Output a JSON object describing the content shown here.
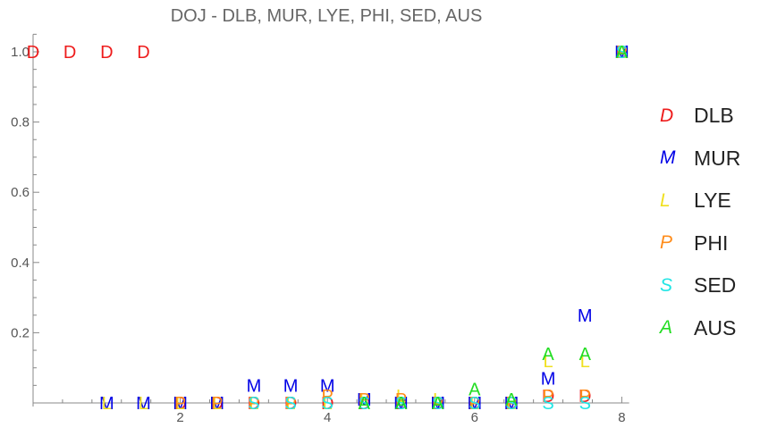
{
  "chart_data": {
    "type": "scatter",
    "title": "DOJ - DLB, MUR, LYE, PHI, SED, AUS",
    "xlabel": "",
    "ylabel": "",
    "xlim": [
      0,
      8.1
    ],
    "ylim": [
      0,
      1.05
    ],
    "x_ticks": [
      "2",
      "4",
      "6",
      "8"
    ],
    "y_ticks": [
      "0.2",
      "0.4",
      "0.6",
      "0.8",
      "1.0"
    ],
    "grid": false,
    "legend_position": "right",
    "series": [
      {
        "name": "DLB",
        "marker": "D",
        "color": "#ee1c1c",
        "x": [
          0,
          0.5,
          1,
          1.5,
          2,
          2.5,
          3,
          3.5,
          4,
          4.5,
          5,
          5.5,
          6,
          6.5,
          7,
          7.5,
          8
        ],
        "y": [
          1.0,
          1.0,
          1.0,
          1.0,
          0,
          0,
          0,
          0,
          0,
          0,
          0,
          0,
          0,
          0,
          0.02,
          0.02,
          1.0
        ]
      },
      {
        "name": "MUR",
        "marker": "M",
        "color": "#0000e6",
        "x": [
          1,
          1.5,
          2,
          2.5,
          3,
          3.5,
          4,
          4.5,
          5,
          5.5,
          6,
          6.5,
          7,
          7.5,
          8
        ],
        "y": [
          0,
          0,
          0,
          0,
          0.05,
          0.05,
          0.05,
          0.01,
          0,
          0,
          0,
          0,
          0.07,
          0.25,
          1.0
        ]
      },
      {
        "name": "LYE",
        "marker": "L",
        "color": "#f0e020",
        "x": [
          1,
          1.5,
          2,
          2.5,
          3,
          3.5,
          4,
          4.5,
          5,
          5.5,
          6,
          6.5,
          7,
          7.5,
          8
        ],
        "y": [
          0,
          0,
          0,
          0,
          0,
          0,
          0,
          0.01,
          0.02,
          0.01,
          0,
          0,
          0.12,
          0.12,
          1.0
        ]
      },
      {
        "name": "PHI",
        "marker": "P",
        "color": "#ff8c1a",
        "x": [
          2,
          2.5,
          3,
          3.5,
          4,
          4.5,
          5,
          5.5,
          6,
          6.5,
          7,
          7.5,
          8
        ],
        "y": [
          0,
          0,
          0,
          0,
          0.02,
          0.01,
          0.01,
          0,
          0,
          0,
          0.02,
          0.02,
          1.0
        ]
      },
      {
        "name": "SED",
        "marker": "S",
        "color": "#22e5e5",
        "x": [
          3,
          3.5,
          4,
          4.5,
          5,
          5.5,
          6,
          6.5,
          7,
          7.5,
          8
        ],
        "y": [
          0,
          0,
          0,
          0,
          0,
          0,
          0,
          0,
          0,
          0,
          1.0
        ]
      },
      {
        "name": "AUS",
        "marker": "A",
        "color": "#22dd22",
        "x": [
          4.5,
          5,
          5.5,
          6,
          6.5,
          7,
          7.5,
          8
        ],
        "y": [
          0,
          0,
          0,
          0.04,
          0.01,
          0.14,
          0.14,
          1.0
        ]
      }
    ]
  }
}
